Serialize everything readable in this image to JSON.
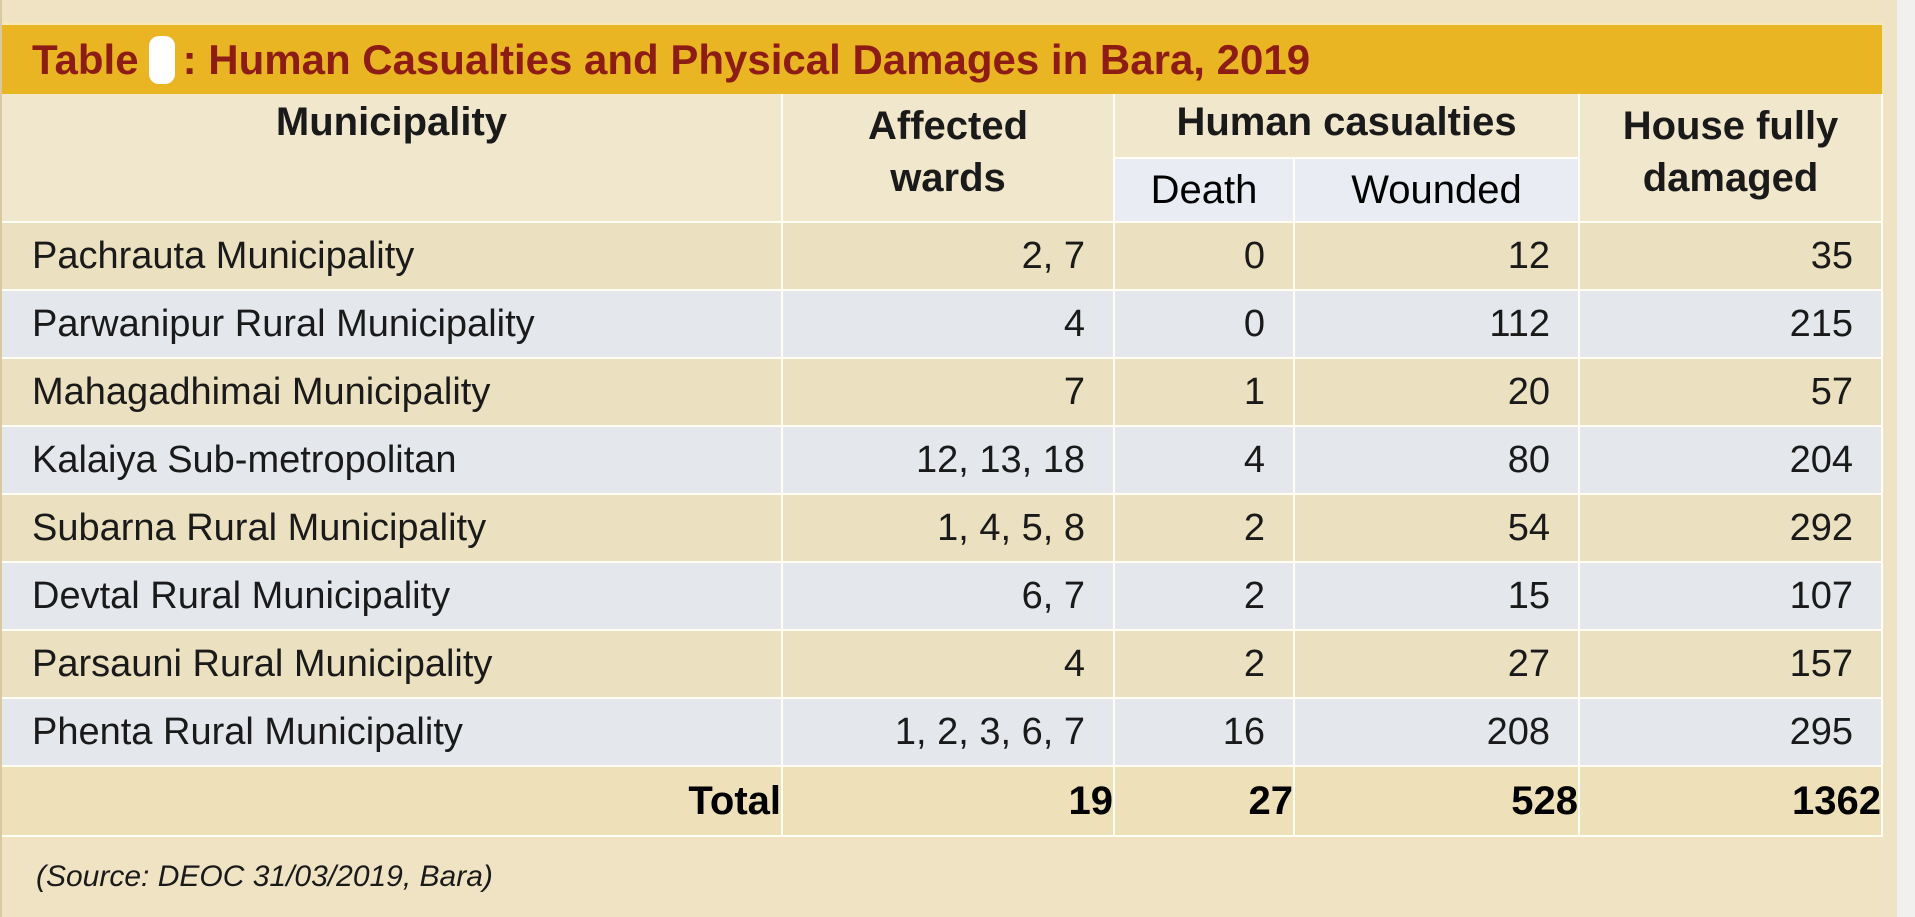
{
  "title": {
    "prefix": "Table",
    "text": ": Human Casualties and Physical Damages in Bara, 2019"
  },
  "headers": {
    "municipality": "Municipality",
    "affected_wards_line1": "Affected",
    "affected_wards_line2": "wards",
    "human_casualties": "Human casualties",
    "death": "Death",
    "wounded": "Wounded",
    "house_line1": "House fully",
    "house_line2": "damaged"
  },
  "rows": [
    {
      "municipality": "Pachrauta Municipality",
      "wards": "2, 7",
      "death": "0",
      "wounded": "12",
      "house": "35"
    },
    {
      "municipality": "Parwanipur Rural Municipality",
      "wards": "4",
      "death": "0",
      "wounded": "112",
      "house": "215"
    },
    {
      "municipality": "Mahagadhimai Municipality",
      "wards": "7",
      "death": "1",
      "wounded": "20",
      "house": "57"
    },
    {
      "municipality": "Kalaiya Sub-metropolitan",
      "wards": "12, 13, 18",
      "death": "4",
      "wounded": "80",
      "house": "204"
    },
    {
      "municipality": "Subarna Rural Municipality",
      "wards": "1, 4, 5, 8",
      "death": "2",
      "wounded": "54",
      "house": "292"
    },
    {
      "municipality": "Devtal Rural Municipality",
      "wards": "6, 7",
      "death": "2",
      "wounded": "15",
      "house": "107"
    },
    {
      "municipality": "Parsauni Rural Municipality",
      "wards": "4",
      "death": "2",
      "wounded": "27",
      "house": "157"
    },
    {
      "municipality": "Phenta Rural Municipality",
      "wards": "1, 2, 3, 6, 7",
      "death": "16",
      "wounded": "208",
      "house": "295"
    }
  ],
  "total": {
    "label": "Total",
    "wards": "19",
    "death": "27",
    "wounded": "528",
    "house": "1362"
  },
  "source": "(Source: DEOC 31/03/2019, Bara)"
}
